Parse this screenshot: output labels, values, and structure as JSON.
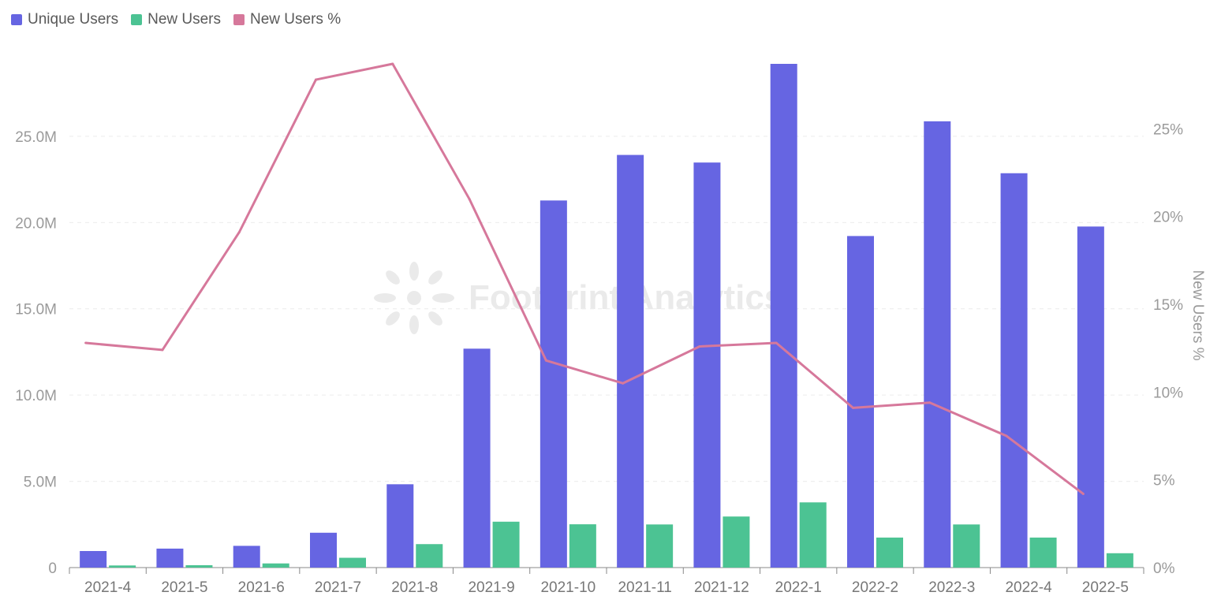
{
  "legend": [
    {
      "name": "Unique Users",
      "color": "#6665e2"
    },
    {
      "name": "New Users",
      "color": "#4cc393"
    },
    {
      "name": "New Users %",
      "color": "#d6789b"
    }
  ],
  "watermark": "Footprint Analytics",
  "chart_data": {
    "type": "bar",
    "categories": [
      "2021-4",
      "2021-5",
      "2021-6",
      "2021-7",
      "2021-8",
      "2021-9",
      "2021-10",
      "2021-11",
      "2021-12",
      "2022-1",
      "2022-2",
      "2022-3",
      "2022-4",
      "2022-5"
    ],
    "series": [
      {
        "name": "Unique Users",
        "type": "bar",
        "axis": "left",
        "color": "#6665e2",
        "values": [
          960000,
          1100000,
          1260000,
          2020000,
          4830000,
          12690000,
          21280000,
          23920000,
          23480000,
          29200000,
          19220000,
          25870000,
          22860000,
          19770000
        ]
      },
      {
        "name": "New Users",
        "type": "bar",
        "axis": "left",
        "color": "#4cc393",
        "values": [
          123000,
          137000,
          241000,
          569000,
          1360000,
          2660000,
          2510000,
          2500000,
          2960000,
          3780000,
          1740000,
          2500000,
          1740000,
          832000
        ]
      },
      {
        "name": "New Users %",
        "type": "line",
        "axis": "right",
        "color": "#d6789b",
        "values": [
          12.8,
          12.4,
          19.1,
          27.8,
          28.7,
          21.0,
          11.8,
          10.5,
          12.6,
          12.8,
          9.1,
          9.4,
          7.5,
          4.2
        ]
      }
    ],
    "left_axis": {
      "ticks": [
        "0",
        "5.0M",
        "10.0M",
        "15.0M",
        "20.0M",
        "25.0M"
      ],
      "tick_values": [
        0,
        5000000,
        10000000,
        15000000,
        20000000,
        25000000
      ],
      "ylim": [
        0,
        29200000
      ]
    },
    "right_axis": {
      "label": "New Users %",
      "ticks": [
        "0%",
        "5%",
        "10%",
        "15%",
        "20%",
        "25%"
      ],
      "tick_values": [
        0,
        5,
        10,
        15,
        20,
        25
      ],
      "ylim": [
        0,
        28.7
      ]
    },
    "grid": true,
    "legend_position": "top-left"
  }
}
